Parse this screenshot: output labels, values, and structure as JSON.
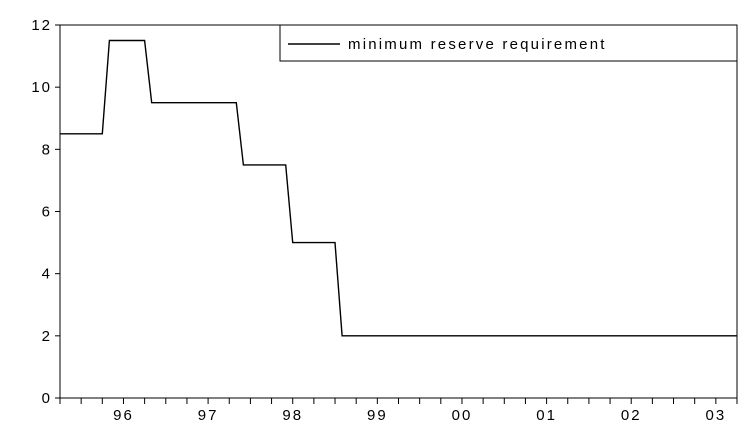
{
  "chart_data": {
    "type": "line",
    "title": "",
    "xlabel": "",
    "ylabel": "",
    "x_tick_labels": [
      "96",
      "97",
      "98",
      "99",
      "00",
      "01",
      "02",
      "03"
    ],
    "y_tick_labels": [
      "0",
      "2",
      "4",
      "6",
      "8",
      "10",
      "12"
    ],
    "ylim": [
      0,
      12
    ],
    "xlim": [
      "1995-10",
      "2003-10"
    ],
    "grid": false,
    "legend_position": "top-right",
    "series": [
      {
        "name": "minimum reserve requirement",
        "color": "#000000",
        "points": [
          {
            "x": "1995-10",
            "y": 8.5
          },
          {
            "x": "1996-04",
            "y": 8.5
          },
          {
            "x": "1996-05",
            "y": 11.5
          },
          {
            "x": "1996-10",
            "y": 11.5
          },
          {
            "x": "1996-11",
            "y": 9.5
          },
          {
            "x": "1997-11",
            "y": 9.5
          },
          {
            "x": "1997-12",
            "y": 7.5
          },
          {
            "x": "1998-06",
            "y": 7.5
          },
          {
            "x": "1998-07",
            "y": 5.0
          },
          {
            "x": "1999-01",
            "y": 5.0
          },
          {
            "x": "1999-02",
            "y": 2.0
          },
          {
            "x": "2003-10",
            "y": 2.0
          }
        ]
      }
    ]
  }
}
